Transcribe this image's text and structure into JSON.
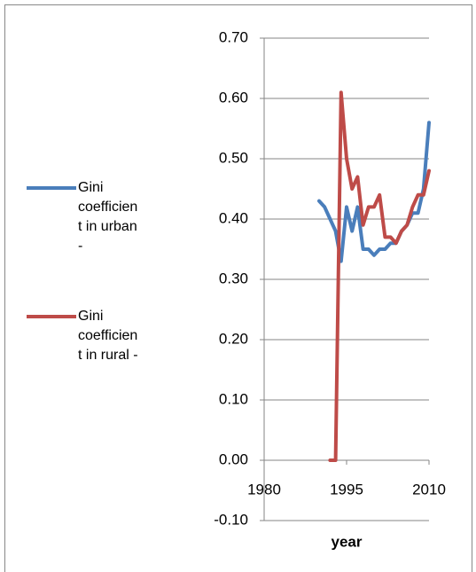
{
  "chart_data": {
    "type": "line",
    "x_label": "year",
    "x": [
      1990,
      1991,
      1992,
      1993,
      1994,
      1995,
      1996,
      1997,
      1998,
      1999,
      2000,
      2001,
      2002,
      2003,
      2004,
      2005,
      2006,
      2007,
      2008,
      2009,
      2010
    ],
    "series": [
      {
        "name": "Gini coefficient in urban -",
        "color": "#4a7ebb",
        "values": [
          0.43,
          0.42,
          0.4,
          0.38,
          0.33,
          0.42,
          0.38,
          0.42,
          0.35,
          0.35,
          0.34,
          0.35,
          0.35,
          0.36,
          0.36,
          0.38,
          0.39,
          0.41,
          0.41,
          0.45,
          0.56
        ]
      },
      {
        "name": "Gini coefficient in rural -",
        "color": "#be4b48",
        "values": [
          null,
          null,
          0,
          0,
          0.61,
          0.5,
          0.45,
          0.47,
          0.39,
          0.42,
          0.42,
          0.44,
          0.37,
          0.37,
          0.36,
          0.38,
          0.39,
          0.42,
          0.44,
          0.44,
          0.48
        ]
      }
    ],
    "xlim": [
      1980,
      2010
    ],
    "xticks": [
      1980,
      1995,
      2010
    ],
    "ylim": [
      -0.1,
      0.7
    ],
    "yticks": [
      {
        "value": -0.1,
        "label": "-0.10"
      },
      {
        "value": 0,
        "label": "0.00"
      },
      {
        "value": 0.1,
        "label": "0.10"
      },
      {
        "value": 0.2,
        "label": "0.20"
      },
      {
        "value": 0.3,
        "label": "0.30"
      },
      {
        "value": 0.4,
        "label": "0.40"
      },
      {
        "value": 0.5,
        "label": "0.50"
      },
      {
        "value": 0.6,
        "label": "0.60"
      },
      {
        "value": 0.7,
        "label": "0.70"
      }
    ],
    "grid": true,
    "legend": "left"
  }
}
